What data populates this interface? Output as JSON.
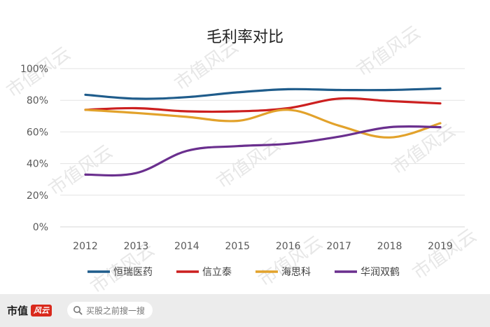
{
  "watermark_text": "市值风云",
  "chart_data": {
    "type": "line",
    "title": "毛利率对比",
    "xlabel": "",
    "ylabel": "",
    "x": [
      "2012",
      "2013",
      "2014",
      "2015",
      "2016",
      "2017",
      "2018",
      "2019"
    ],
    "y_ticks": [
      "0%",
      "20%",
      "40%",
      "60%",
      "80%",
      "100%"
    ],
    "ylim": [
      0,
      100
    ],
    "grid": "horizontal",
    "legend_position": "bottom",
    "series": [
      {
        "name": "恒瑞医药",
        "color": "#1f5c8b",
        "values": [
          83.5,
          81,
          82,
          85,
          87,
          86.5,
          86.5,
          87.5
        ]
      },
      {
        "name": "信立泰",
        "color": "#cc1f1f",
        "values": [
          74,
          75,
          73,
          73,
          75,
          81,
          79.5,
          78
        ]
      },
      {
        "name": "海思科",
        "color": "#e2a22b",
        "values": [
          74,
          72,
          69.5,
          67,
          74,
          64,
          56.5,
          65.5
        ]
      },
      {
        "name": "华润双鹤",
        "color": "#6a2f8e",
        "values": [
          33,
          34,
          48,
          51,
          52.5,
          57,
          63,
          63
        ]
      }
    ]
  },
  "footer": {
    "brand": "市值",
    "brand_badge": "风云",
    "search_placeholder": "买股之前搜一搜",
    "search_icon": "search-icon"
  }
}
